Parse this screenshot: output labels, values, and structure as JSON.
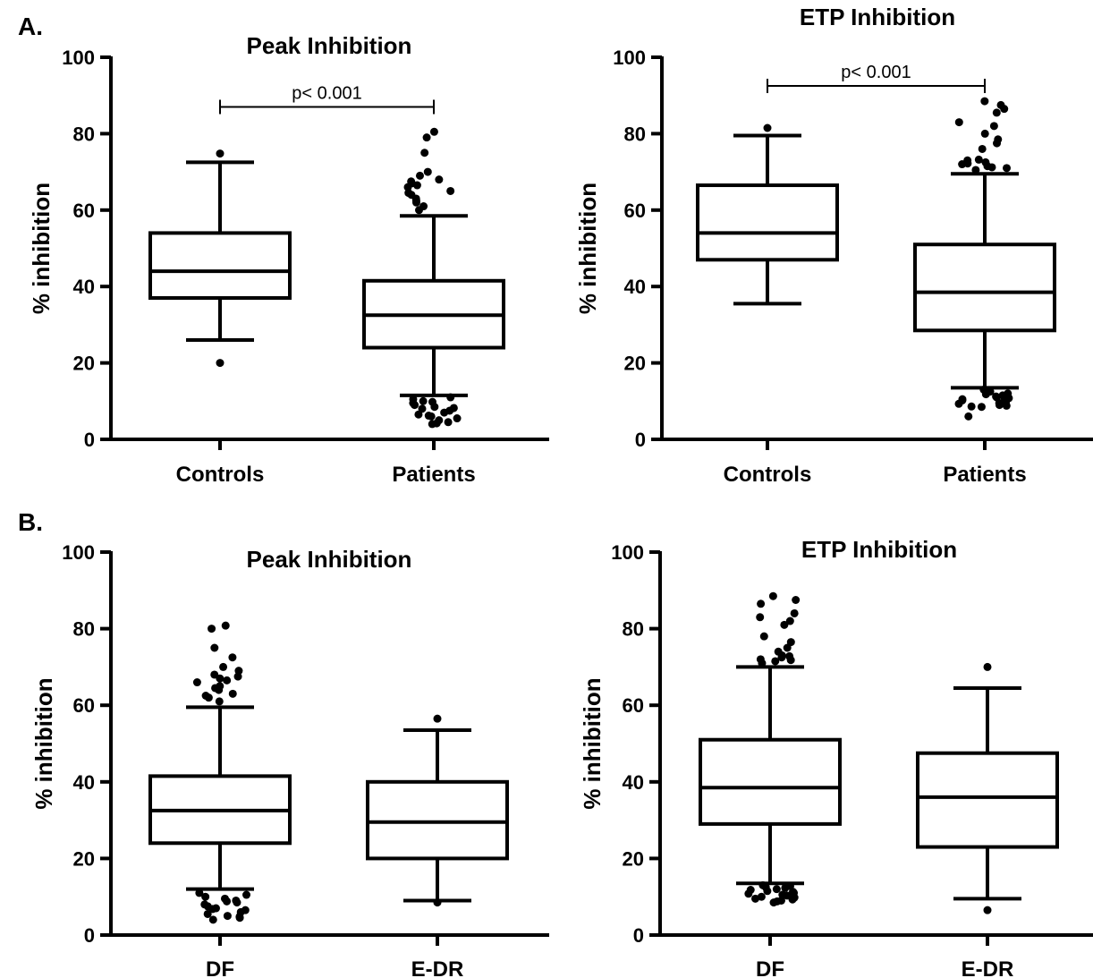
{
  "panels": [
    {
      "letter": "A."
    },
    {
      "letter": "B."
    }
  ],
  "colors": {
    "ink": "#000000",
    "box_fill": "#ffffff"
  },
  "chart_data": [
    {
      "type": "box",
      "panel": "A",
      "title": "Peak Inhibition",
      "xlabel": "",
      "ylabel": "% inhibition",
      "ylim": [
        0,
        100
      ],
      "yticks": [
        0,
        20,
        40,
        60,
        80,
        100
      ],
      "categories": [
        "Controls",
        "Patients"
      ],
      "boxes": [
        {
          "category": "Controls",
          "whisker_low": 26,
          "q1": 37,
          "median": 44,
          "q3": 54,
          "whisker_high": 72.5,
          "outliers": [
            20,
            74.8
          ]
        },
        {
          "category": "Patients",
          "whisker_low": 11.5,
          "q1": 24,
          "median": 32.5,
          "q3": 41.5,
          "whisker_high": 58.5,
          "outliers": [
            4,
            4.5,
            5,
            5.5,
            6,
            6.5,
            7,
            7.5,
            8,
            8.5,
            9,
            9.5,
            10,
            10.5,
            11,
            4.2,
            6.2,
            8.2,
            9.8,
            60,
            61,
            62,
            63,
            64,
            65,
            66,
            67,
            67.5,
            68,
            69,
            70,
            75,
            79,
            80.5,
            62.5,
            64.5,
            66.5
          ]
        }
      ],
      "annotation": {
        "text": "p< 0.001",
        "y": 87
      }
    },
    {
      "type": "box",
      "panel": "A",
      "title": "ETP Inhibition",
      "xlabel": "",
      "ylabel": "% inhibition",
      "ylim": [
        0,
        100
      ],
      "yticks": [
        0,
        20,
        40,
        60,
        80,
        100
      ],
      "categories": [
        "Controls",
        "Patients"
      ],
      "boxes": [
        {
          "category": "Controls",
          "whisker_low": 35.5,
          "q1": 47,
          "median": 54,
          "q3": 66.5,
          "whisker_high": 79.5,
          "outliers": [
            81.5
          ]
        },
        {
          "category": "Patients",
          "whisker_low": 13.5,
          "q1": 28.5,
          "median": 38.5,
          "q3": 51,
          "whisker_high": 69.5,
          "outliers": [
            6,
            8.5,
            9,
            9.5,
            10,
            10.5,
            11,
            11.5,
            12,
            12.5,
            13,
            8.8,
            9.3,
            10.2,
            11.2,
            12.2,
            9.7,
            10.8,
            11.8,
            8.6,
            70.5,
            71,
            71.5,
            72,
            72.5,
            73,
            76,
            77.5,
            78.5,
            80,
            82,
            83,
            85.5,
            86.5,
            87.5,
            88.5,
            71.2,
            72.2,
            73.2
          ]
        }
      ],
      "annotation": {
        "text": "p< 0.001",
        "y": 92.5
      }
    },
    {
      "type": "box",
      "panel": "B",
      "title": "Peak Inhibition",
      "xlabel": "",
      "ylabel": "% inhibition",
      "ylim": [
        0,
        100
      ],
      "yticks": [
        0,
        20,
        40,
        60,
        80,
        100
      ],
      "categories": [
        "DF",
        "E-DR"
      ],
      "boxes": [
        {
          "category": "DF",
          "whisker_low": 12,
          "q1": 24,
          "median": 32.5,
          "q3": 41.5,
          "whisker_high": 59.5,
          "outliers": [
            4,
            4.5,
            5,
            5.5,
            6,
            6.5,
            7,
            7.5,
            8,
            8.5,
            9,
            9.5,
            10,
            10.5,
            11,
            4.8,
            6.8,
            8.8,
            61,
            62,
            63,
            64,
            65,
            66,
            67,
            67.5,
            68,
            69,
            70,
            72.5,
            75,
            80,
            80.8,
            62.5,
            64.5,
            66.5
          ]
        },
        {
          "category": "E-DR",
          "whisker_low": 9,
          "q1": 20,
          "median": 29.5,
          "q3": 40,
          "whisker_high": 53.5,
          "outliers": [
            8.5,
            56.5
          ]
        }
      ]
    },
    {
      "type": "box",
      "panel": "B",
      "title": "ETP Inhibition",
      "xlabel": "",
      "ylabel": "% inhibition",
      "ylim": [
        0,
        100
      ],
      "yticks": [
        0,
        20,
        40,
        60,
        80,
        100
      ],
      "categories": [
        "DF",
        "E-DR"
      ],
      "boxes": [
        {
          "category": "DF",
          "whisker_low": 13.5,
          "q1": 29,
          "median": 38.5,
          "q3": 51,
          "whisker_high": 70,
          "outliers": [
            8.5,
            9,
            9.5,
            10,
            10.5,
            11,
            11.5,
            12,
            12.5,
            13,
            8.8,
            9.8,
            10.8,
            11.8,
            12.8,
            9.3,
            10.3,
            11.3,
            12.3,
            71,
            71.5,
            72,
            72.5,
            73,
            74,
            75,
            76.5,
            78,
            81,
            82,
            83,
            84,
            86.5,
            87.5,
            88.5,
            71.8,
            72.8
          ]
        },
        {
          "category": "E-DR",
          "whisker_low": 9.5,
          "q1": 23,
          "median": 36,
          "q3": 47.5,
          "whisker_high": 64.5,
          "outliers": [
            6.5,
            70
          ]
        }
      ]
    }
  ]
}
